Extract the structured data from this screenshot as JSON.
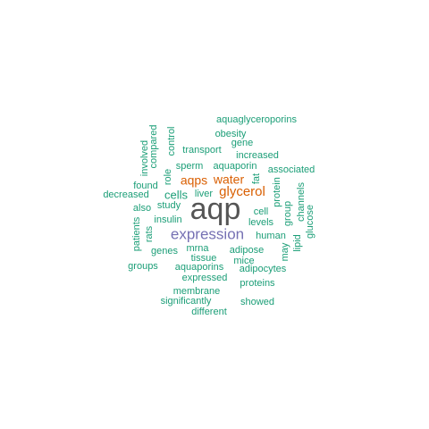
{
  "colors": {
    "teal": "#1b9e77",
    "orange": "#d95f02",
    "purple": "#7570b3",
    "dark": "#555555"
  },
  "words": [
    {
      "text": "aqp",
      "color": "dark",
      "weight": 5
    },
    {
      "text": "expression",
      "color": "purple",
      "weight": 4
    },
    {
      "text": "glycerol",
      "color": "orange",
      "weight": 3
    },
    {
      "text": "aqps",
      "color": "orange",
      "weight": 3
    },
    {
      "text": "water",
      "color": "orange",
      "weight": 3
    },
    {
      "text": "aquaglyceroporins",
      "color": "teal",
      "weight": 1
    },
    {
      "text": "obesity",
      "color": "teal",
      "weight": 1
    },
    {
      "text": "gene",
      "color": "teal",
      "weight": 1
    },
    {
      "text": "transport",
      "color": "teal",
      "weight": 1
    },
    {
      "text": "increased",
      "color": "teal",
      "weight": 1
    },
    {
      "text": "involved",
      "color": "teal",
      "weight": 1
    },
    {
      "text": "compared",
      "color": "teal",
      "weight": 1
    },
    {
      "text": "control",
      "color": "teal",
      "weight": 1
    },
    {
      "text": "sperm",
      "color": "teal",
      "weight": 1
    },
    {
      "text": "aquaporin",
      "color": "teal",
      "weight": 1
    },
    {
      "text": "associated",
      "color": "teal",
      "weight": 1
    },
    {
      "text": "role",
      "color": "teal",
      "weight": 1
    },
    {
      "text": "found",
      "color": "teal",
      "weight": 1
    },
    {
      "text": "fat",
      "color": "teal",
      "weight": 1
    },
    {
      "text": "decreased",
      "color": "teal",
      "weight": 1
    },
    {
      "text": "cells",
      "color": "teal",
      "weight": 2
    },
    {
      "text": "liver",
      "color": "teal",
      "weight": 1
    },
    {
      "text": "protein",
      "color": "teal",
      "weight": 1
    },
    {
      "text": "channels",
      "color": "teal",
      "weight": 1
    },
    {
      "text": "also",
      "color": "teal",
      "weight": 1
    },
    {
      "text": "study",
      "color": "teal",
      "weight": 1
    },
    {
      "text": "cell",
      "color": "teal",
      "weight": 1
    },
    {
      "text": "group",
      "color": "teal",
      "weight": 1
    },
    {
      "text": "glucose",
      "color": "teal",
      "weight": 1
    },
    {
      "text": "patients",
      "color": "teal",
      "weight": 1
    },
    {
      "text": "insulin",
      "color": "teal",
      "weight": 1
    },
    {
      "text": "levels",
      "color": "teal",
      "weight": 1
    },
    {
      "text": "rats",
      "color": "teal",
      "weight": 1
    },
    {
      "text": "human",
      "color": "teal",
      "weight": 1
    },
    {
      "text": "lipid",
      "color": "teal",
      "weight": 1
    },
    {
      "text": "may",
      "color": "teal",
      "weight": 1
    },
    {
      "text": "genes",
      "color": "teal",
      "weight": 1
    },
    {
      "text": "mrna",
      "color": "teal",
      "weight": 1
    },
    {
      "text": "adipose",
      "color": "teal",
      "weight": 1
    },
    {
      "text": "tissue",
      "color": "teal",
      "weight": 1
    },
    {
      "text": "mice",
      "color": "teal",
      "weight": 1
    },
    {
      "text": "groups",
      "color": "teal",
      "weight": 1
    },
    {
      "text": "aquaporins",
      "color": "teal",
      "weight": 1
    },
    {
      "text": "adipocytes",
      "color": "teal",
      "weight": 1
    },
    {
      "text": "expressed",
      "color": "teal",
      "weight": 1
    },
    {
      "text": "proteins",
      "color": "teal",
      "weight": 1
    },
    {
      "text": "membrane",
      "color": "teal",
      "weight": 1
    },
    {
      "text": "significantly",
      "color": "teal",
      "weight": 1
    },
    {
      "text": "showed",
      "color": "teal",
      "weight": 1
    },
    {
      "text": "different",
      "color": "teal",
      "weight": 1
    }
  ]
}
